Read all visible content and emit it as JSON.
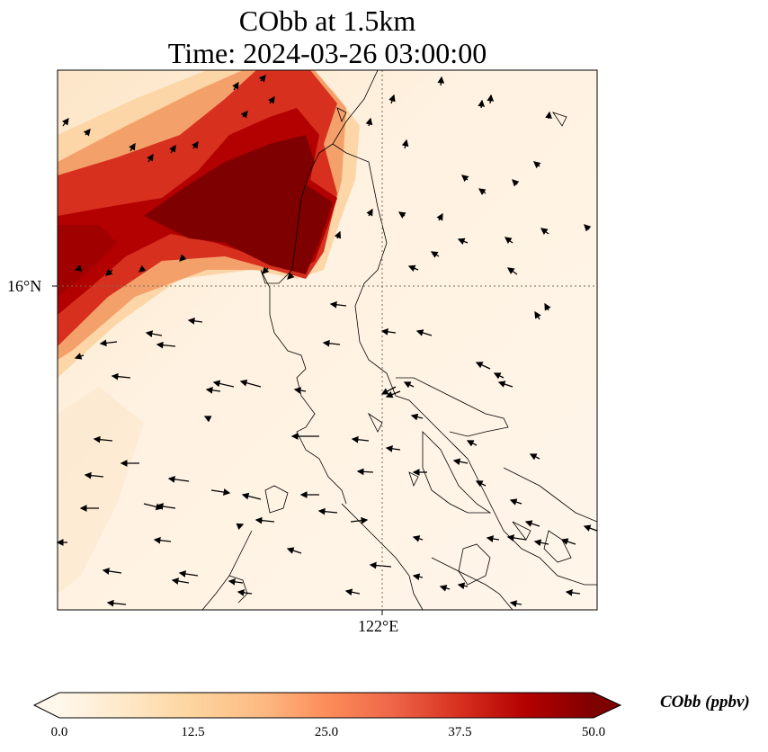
{
  "title": {
    "line1": "CObb at 1.5km",
    "line2": "Time: 2024-03-26 03:00:00"
  },
  "map": {
    "variable": "CObb",
    "level": "1.5km",
    "gridlines": {
      "latitude_label": "16°N",
      "longitude_label": "122°E",
      "style": "dotted"
    },
    "features": [
      "coastline",
      "wind-vectors",
      "concentration-field"
    ],
    "field_summary": "high values (>40 ppbv) in a band across the upper-left, low values (<10 ppbv) elsewhere"
  },
  "colorbar": {
    "label": "CObb (ppbv)",
    "ticks": [
      "0.0",
      "12.5",
      "25.0",
      "37.5",
      "50.0"
    ],
    "range": [
      0,
      50
    ],
    "extend": "both",
    "colormap": "OrRd",
    "colors": [
      "#fff7ec",
      "#fee8c8",
      "#fdd49e",
      "#fdbb84",
      "#fc8d59",
      "#ef6548",
      "#d7301f",
      "#b30000",
      "#7f0000"
    ]
  }
}
